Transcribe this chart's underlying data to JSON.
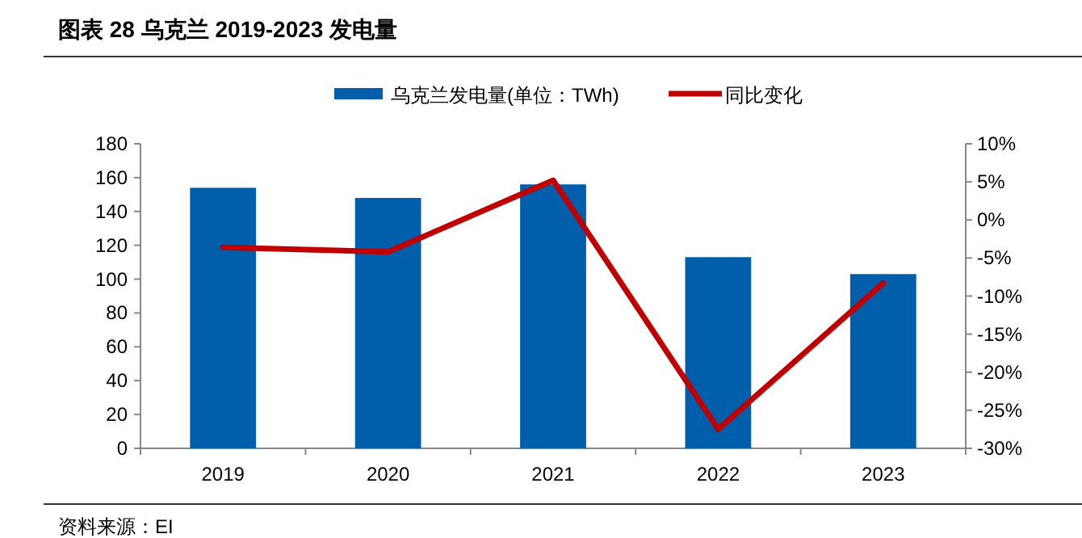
{
  "chart_data": {
    "type": "bar",
    "title": "图表 28 乌克兰 2019-2023 发电量",
    "categories": [
      "2019",
      "2020",
      "2021",
      "2022",
      "2023"
    ],
    "series": [
      {
        "name": "乌克兰发电量(单位：TWh)",
        "color": "#005eaa",
        "values": [
          154,
          148,
          156,
          113,
          103
        ]
      },
      {
        "name": "同比变化",
        "type": "line",
        "axis": "y2",
        "color": "#c00000",
        "values": [
          -3.6,
          -4.2,
          5.2,
          -27.5,
          -8.3
        ]
      }
    ],
    "ylim": [
      0,
      180
    ],
    "yticks": [
      0,
      20,
      40,
      60,
      80,
      100,
      120,
      140,
      160,
      180
    ],
    "y2lim": [
      -30,
      10
    ],
    "y2ticks": [
      {
        "value": -30,
        "label": "-30%"
      },
      {
        "value": -25,
        "label": "-25%"
      },
      {
        "value": -20,
        "label": "-20%"
      },
      {
        "value": -15,
        "label": "-15%"
      },
      {
        "value": -10,
        "label": "-10%"
      },
      {
        "value": -5,
        "label": "-5%"
      },
      {
        "value": 0,
        "label": "0%"
      },
      {
        "value": 5,
        "label": "5%"
      },
      {
        "value": 10,
        "label": "10%"
      }
    ],
    "legend": "top",
    "grid": false,
    "annotations": [
      "资料来源：EI"
    ]
  }
}
